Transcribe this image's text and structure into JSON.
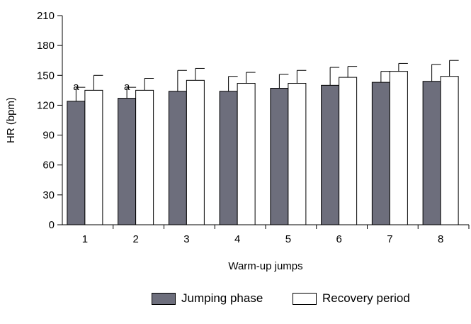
{
  "chart_data": {
    "type": "bar",
    "title": "",
    "xlabel": "Warm-up jumps",
    "ylabel": "HR (bpm)",
    "ylim": [
      0,
      210
    ],
    "yticks": [
      "0",
      "30",
      "60",
      "90",
      "120",
      "150",
      "180",
      "210"
    ],
    "categories": [
      "1",
      "2",
      "3",
      "4",
      "5",
      "6",
      "7",
      "8"
    ],
    "grid": false,
    "legend_placement": "bottom",
    "series": [
      {
        "name": "Jumping phase",
        "color": "#6d6e7c",
        "values": [
          124,
          127,
          134,
          134,
          137,
          140,
          143,
          144
        ],
        "error": [
          14,
          11,
          21,
          15,
          14,
          18,
          11,
          17
        ]
      },
      {
        "name": "Recovery period",
        "color": "#ffffff",
        "values": [
          135,
          135,
          145,
          142,
          142,
          148,
          154,
          149
        ],
        "error": [
          15,
          12,
          12,
          11,
          13,
          11,
          8,
          16
        ]
      }
    ],
    "annotations": [
      {
        "category": "1",
        "series": "Jumping phase",
        "text": "a"
      },
      {
        "category": "2",
        "series": "Jumping phase",
        "text": "a"
      }
    ]
  }
}
